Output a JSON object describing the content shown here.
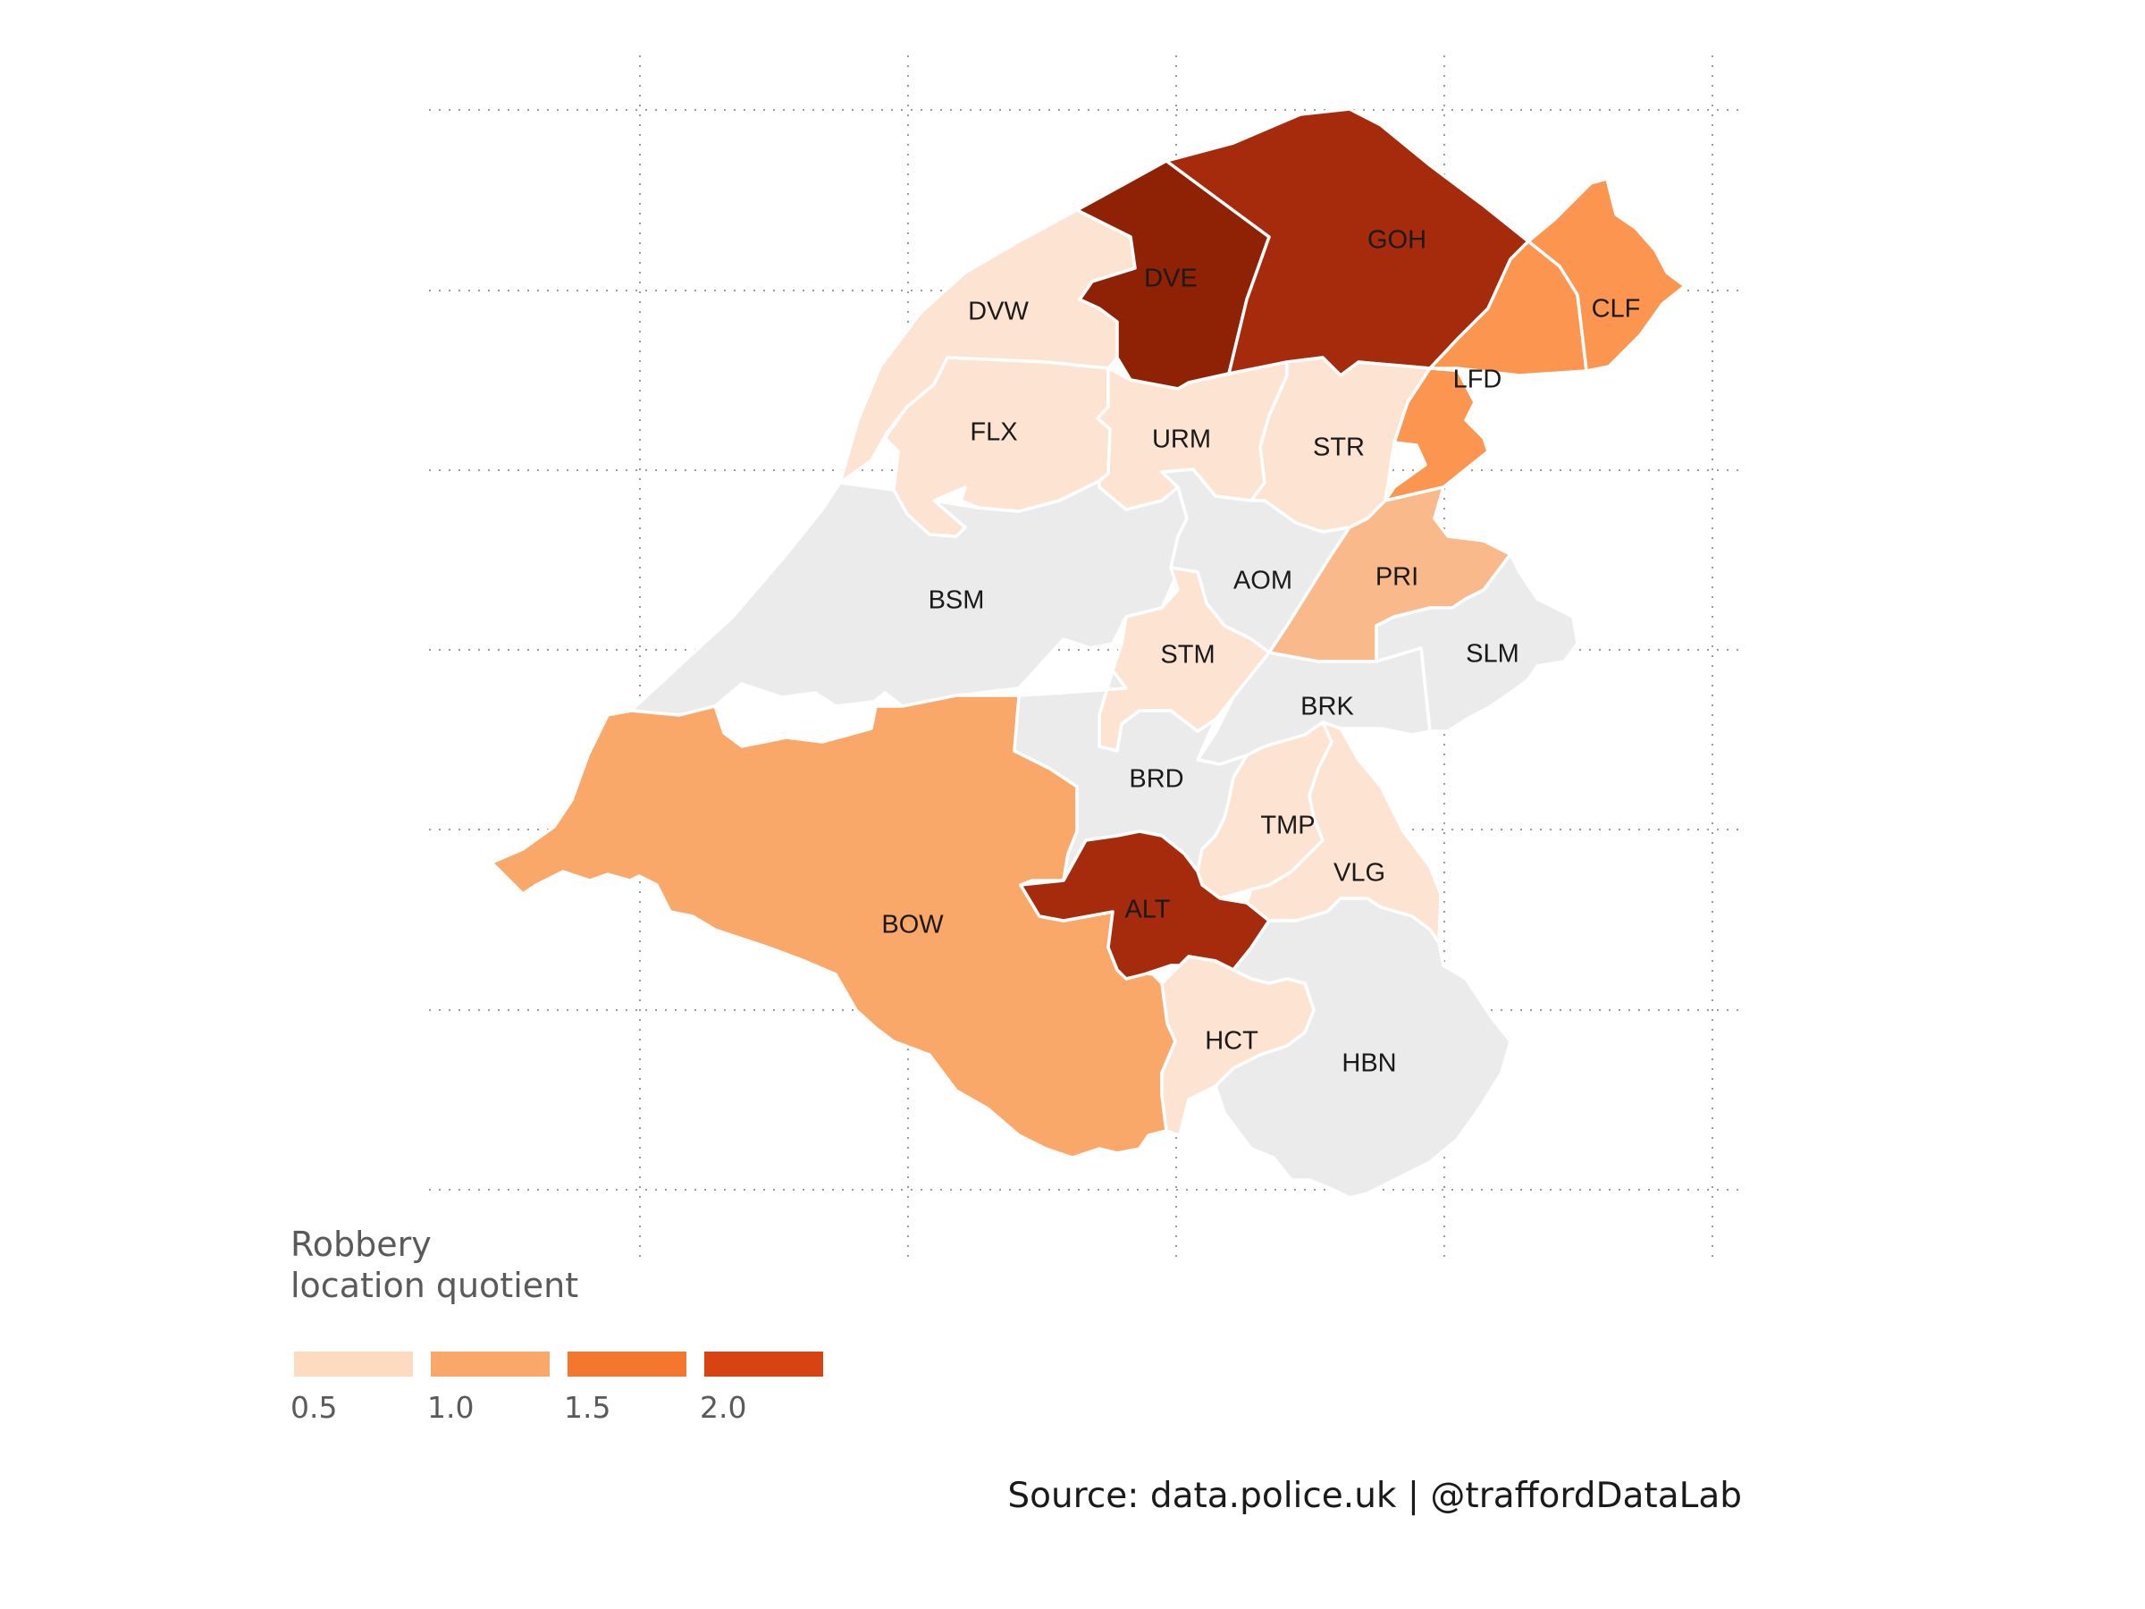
{
  "legend": {
    "title_line1": "Robbery",
    "title_line2": "location quotient",
    "keys": [
      {
        "color": "#fddbc0",
        "label": "0.5"
      },
      {
        "color": "#f9a86a",
        "label": "1.0"
      },
      {
        "color": "#f4762f",
        "label": "1.5"
      },
      {
        "color": "#d84314",
        "label": "2.0"
      }
    ]
  },
  "caption": "Source: data.police.uk  |  @traffordDataLab",
  "colors": {
    "no_data": "#ebebeb",
    "lq_low": "#fde3d2",
    "lq_mid": "#f9a86a",
    "lq_high": "#fb9550",
    "lq_very_high": "#a52b0c",
    "lq_max": "#8f2205"
  },
  "wards": [
    {
      "code": "DVE",
      "fill": "#8f2205"
    },
    {
      "code": "GOH",
      "fill": "#a52b0c"
    },
    {
      "code": "CLF",
      "fill": "#fb9550"
    },
    {
      "code": "LFD",
      "fill": "#fb9550"
    },
    {
      "code": "DVW",
      "fill": "#fde3d2"
    },
    {
      "code": "FLX",
      "fill": "#fde3d2"
    },
    {
      "code": "URM",
      "fill": "#fde3d2"
    },
    {
      "code": "STR",
      "fill": "#fde3d2"
    },
    {
      "code": "PRI",
      "fill": "#f9b98a"
    },
    {
      "code": "BSM",
      "fill": "#ebebeb"
    },
    {
      "code": "AOM",
      "fill": "#ebebeb"
    },
    {
      "code": "SLM",
      "fill": "#ebebeb"
    },
    {
      "code": "STM",
      "fill": "#fde3d2"
    },
    {
      "code": "BRK",
      "fill": "#ebebeb"
    },
    {
      "code": "BRD",
      "fill": "#ebebeb"
    },
    {
      "code": "TMP",
      "fill": "#fde3d2"
    },
    {
      "code": "VLG",
      "fill": "#fde3d2"
    },
    {
      "code": "BOW",
      "fill": "#f9a86a"
    },
    {
      "code": "ALT",
      "fill": "#a52b0c"
    },
    {
      "code": "HCT",
      "fill": "#fde3d2"
    },
    {
      "code": "HBN",
      "fill": "#ebebeb"
    }
  ]
}
